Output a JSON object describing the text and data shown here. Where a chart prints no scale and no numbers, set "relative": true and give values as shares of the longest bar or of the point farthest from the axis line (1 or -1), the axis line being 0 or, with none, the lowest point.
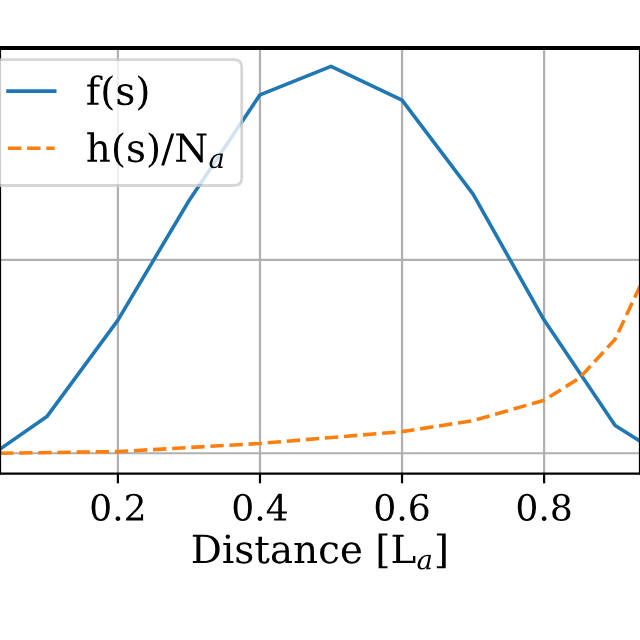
{
  "chart_data": {
    "type": "line",
    "relative": true,
    "xlabel": "Distance [L$_{a}$]",
    "xlim": [
      0.034,
      0.935
    ],
    "xticks": [
      0.2,
      0.4,
      0.6,
      0.8
    ],
    "grid": true,
    "legend": "top left",
    "tick_labels": "x",
    "series": [
      {
        "name": "f(s)",
        "color": "#1f77b4",
        "line_style": "solid",
        "x": [
          0.034,
          0.1,
          0.2,
          0.3,
          0.4,
          0.5,
          0.6,
          0.7,
          0.8,
          0.9,
          0.935
        ],
        "values": [
          0.06,
          0.14,
          0.377,
          0.67,
          0.93,
          1.0,
          0.917,
          0.686,
          0.377,
          0.118,
          0.08
        ]
      },
      {
        "name": "h(s)/N$_{a}$",
        "color": "#ff7f0e",
        "line_style": "dashed",
        "x": [
          0.034,
          0.2,
          0.4,
          0.6,
          0.7,
          0.8,
          0.85,
          0.9,
          0.935
        ],
        "values": [
          0.05,
          0.054,
          0.074,
          0.103,
          0.13,
          0.18,
          0.235,
          0.33,
          0.46
        ]
      }
    ]
  }
}
